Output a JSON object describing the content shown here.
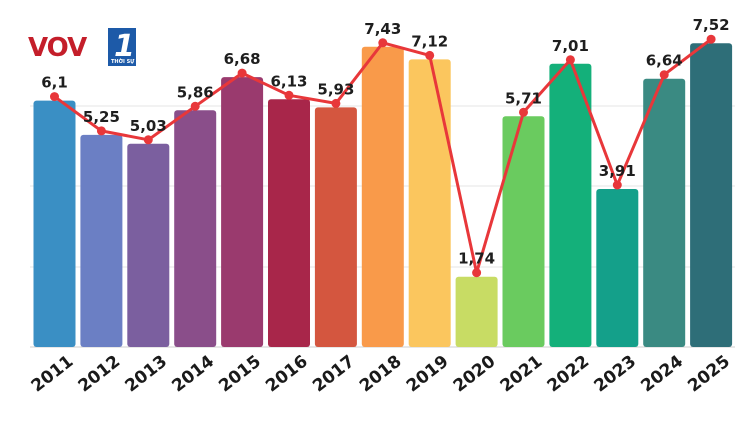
{
  "logo": {
    "brand": "VOV",
    "channel": "1",
    "sub": "THỜI SỰ"
  },
  "colors": {
    "line": "#e8373a",
    "bars": [
      "#3a8fc4",
      "#6b7fc4",
      "#7b5f9f",
      "#8a4e8a",
      "#9a3a6e",
      "#a8264a",
      "#d4563f",
      "#f99a4a",
      "#fbc65e",
      "#c8dc64",
      "#6acb5f",
      "#14b07a",
      "#14a08a",
      "#3a8a82",
      "#2e6e78"
    ]
  },
  "chart_data": {
    "type": "bar",
    "title": "",
    "xlabel": "",
    "ylabel": "",
    "categories": [
      "2011",
      "2012",
      "2013",
      "2014",
      "2015",
      "2016",
      "2017",
      "2018",
      "2019",
      "2020",
      "2021",
      "2022",
      "2023",
      "2024",
      "2025"
    ],
    "values": [
      6.1,
      5.25,
      5.03,
      5.86,
      6.68,
      6.13,
      5.93,
      7.43,
      7.12,
      1.74,
      5.71,
      7.01,
      3.91,
      6.64,
      7.52
    ],
    "value_labels": [
      "6,1",
      "5,25",
      "5,03",
      "5,86",
      "6,68",
      "6,13",
      "5,93",
      "7,43",
      "7,12",
      "1,74",
      "5,71",
      "7,01",
      "3,91",
      "6,64",
      "7,52"
    ],
    "ylim": [
      0,
      7.5
    ],
    "grid": true,
    "overlay_line": true
  }
}
